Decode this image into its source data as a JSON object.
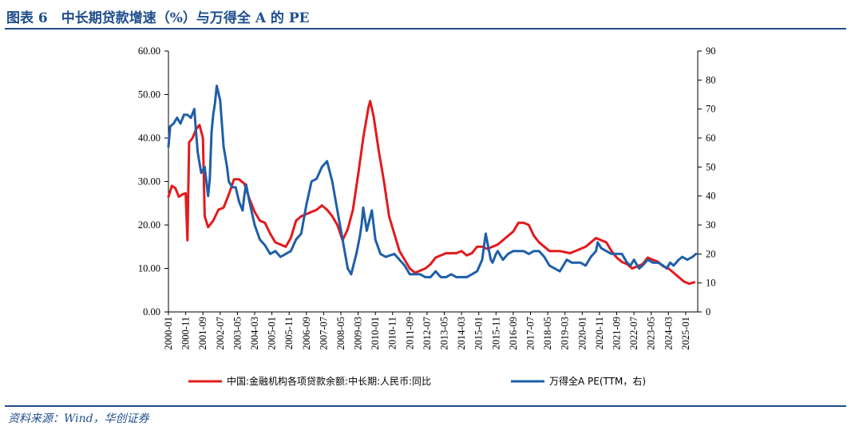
{
  "figure": {
    "title": "图表 6　中长期贷款增速（%）与万得全 A 的 PE",
    "source": "资料来源：Wind，华创证券"
  },
  "chart_data": {
    "type": "line",
    "dual_axis": true,
    "xlabel": "",
    "ylabel": "",
    "ylim_left": [
      0,
      60
    ],
    "yticks_left": [
      "0.00",
      "10.00",
      "20.00",
      "30.00",
      "40.00",
      "50.00",
      "60.00"
    ],
    "ylim_right": [
      0,
      90
    ],
    "yticks_right": [
      "0",
      "10",
      "20",
      "30",
      "40",
      "50",
      "60",
      "70",
      "80",
      "90"
    ],
    "xticks": [
      "2000-01",
      "2000-11",
      "2001-09",
      "2002-07",
      "2003-05",
      "2004-03",
      "2005-01",
      "2005-11",
      "2006-09",
      "2007-07",
      "2008-05",
      "2009-03",
      "2010-01",
      "2010-11",
      "2011-09",
      "2012-07",
      "2013-05",
      "2014-03",
      "2015-01",
      "2015-11",
      "2016-09",
      "2017-07",
      "2018-05",
      "2019-03",
      "2020-01",
      "2020-11",
      "2021-09",
      "2022-07",
      "2023-05",
      "2024-03",
      "2025-01"
    ],
    "x_range": [
      "2000-01",
      "2025-08"
    ],
    "grid": false,
    "legend_position": "bottom",
    "colors": {
      "red": "#e31a1c",
      "blue": "#1f5fa8"
    },
    "series": [
      {
        "name": "中国:金融机构各项贷款余额:中长期:人民币:同比",
        "axis": "left",
        "color": "#e31a1c",
        "points": [
          [
            "2000-01",
            26.5
          ],
          [
            "2000-03",
            29
          ],
          [
            "2000-05",
            28.5
          ],
          [
            "2000-07",
            26.5
          ],
          [
            "2000-09",
            27
          ],
          [
            "2000-11",
            27.3
          ],
          [
            "2000-12",
            16.5
          ],
          [
            "2001-01",
            39
          ],
          [
            "2001-03",
            40
          ],
          [
            "2001-05",
            42
          ],
          [
            "2001-07",
            43
          ],
          [
            "2001-09",
            40
          ],
          [
            "2001-10",
            22
          ],
          [
            "2001-12",
            19.5
          ],
          [
            "2002-03",
            21
          ],
          [
            "2002-06",
            23.5
          ],
          [
            "2002-09",
            24
          ],
          [
            "2002-12",
            27
          ],
          [
            "2003-03",
            30.5
          ],
          [
            "2003-06",
            30.5
          ],
          [
            "2003-09",
            29.5
          ],
          [
            "2003-12",
            26
          ],
          [
            "2004-03",
            23
          ],
          [
            "2004-06",
            21
          ],
          [
            "2004-09",
            20.5
          ],
          [
            "2004-12",
            18
          ],
          [
            "2005-03",
            16
          ],
          [
            "2005-06",
            15.5
          ],
          [
            "2005-09",
            15
          ],
          [
            "2005-12",
            17
          ],
          [
            "2006-03",
            21
          ],
          [
            "2006-06",
            22
          ],
          [
            "2006-09",
            22.5
          ],
          [
            "2006-12",
            23
          ],
          [
            "2007-03",
            23.5
          ],
          [
            "2007-06",
            24.5
          ],
          [
            "2007-09",
            23.5
          ],
          [
            "2007-12",
            22
          ],
          [
            "2008-03",
            20
          ],
          [
            "2008-06",
            16.5
          ],
          [
            "2008-09",
            19
          ],
          [
            "2008-12",
            23.5
          ],
          [
            "2009-03",
            31.5
          ],
          [
            "2009-06",
            40
          ],
          [
            "2009-09",
            47
          ],
          [
            "2009-10",
            48.5
          ],
          [
            "2009-12",
            45
          ],
          [
            "2010-03",
            37
          ],
          [
            "2010-06",
            30
          ],
          [
            "2010-09",
            22
          ],
          [
            "2010-12",
            18
          ],
          [
            "2011-03",
            14
          ],
          [
            "2011-06",
            12
          ],
          [
            "2011-09",
            10
          ],
          [
            "2011-12",
            9
          ],
          [
            "2012-03",
            9.5
          ],
          [
            "2012-06",
            10
          ],
          [
            "2012-09",
            11
          ],
          [
            "2012-12",
            12.5
          ],
          [
            "2013-06",
            13.5
          ],
          [
            "2013-12",
            13.5
          ],
          [
            "2014-03",
            14
          ],
          [
            "2014-06",
            13
          ],
          [
            "2014-09",
            13.5
          ],
          [
            "2014-12",
            15
          ],
          [
            "2015-03",
            15
          ],
          [
            "2015-06",
            14.5
          ],
          [
            "2015-09",
            15
          ],
          [
            "2015-12",
            15.5
          ],
          [
            "2016-03",
            16.5
          ],
          [
            "2016-06",
            17.5
          ],
          [
            "2016-09",
            18.5
          ],
          [
            "2016-12",
            20.5
          ],
          [
            "2017-03",
            20.5
          ],
          [
            "2017-06",
            20
          ],
          [
            "2017-09",
            17.5
          ],
          [
            "2017-12",
            16
          ],
          [
            "2018-06",
            14
          ],
          [
            "2018-12",
            14
          ],
          [
            "2019-06",
            13.5
          ],
          [
            "2019-12",
            14.5
          ],
          [
            "2020-03",
            15
          ],
          [
            "2020-06",
            16
          ],
          [
            "2020-09",
            17
          ],
          [
            "2020-12",
            16.5
          ],
          [
            "2021-03",
            16
          ],
          [
            "2021-06",
            14
          ],
          [
            "2021-09",
            12.5
          ],
          [
            "2021-12",
            11.5
          ],
          [
            "2022-03",
            11
          ],
          [
            "2022-06",
            10
          ],
          [
            "2022-09",
            10.5
          ],
          [
            "2022-12",
            11
          ],
          [
            "2023-03",
            12.5
          ],
          [
            "2023-06",
            12
          ],
          [
            "2023-09",
            11.5
          ],
          [
            "2023-12",
            10.5
          ],
          [
            "2024-03",
            10
          ],
          [
            "2024-06",
            9
          ],
          [
            "2024-09",
            8
          ],
          [
            "2024-12",
            7
          ],
          [
            "2025-03",
            6.5
          ],
          [
            "2025-06",
            6.8
          ]
        ]
      },
      {
        "name": "万得全A PE(TTM，右)",
        "axis": "right",
        "color": "#1f5fa8",
        "points": [
          [
            "2000-01",
            57
          ],
          [
            "2000-02",
            64
          ],
          [
            "2000-04",
            65
          ],
          [
            "2000-06",
            67
          ],
          [
            "2000-08",
            65
          ],
          [
            "2000-10",
            68
          ],
          [
            "2000-12",
            68
          ],
          [
            "2001-02",
            67
          ],
          [
            "2001-04",
            70
          ],
          [
            "2001-05",
            62
          ],
          [
            "2001-06",
            55
          ],
          [
            "2001-08",
            48
          ],
          [
            "2001-10",
            50
          ],
          [
            "2001-12",
            40
          ],
          [
            "2002-01",
            46
          ],
          [
            "2002-02",
            62
          ],
          [
            "2002-03",
            68
          ],
          [
            "2002-04",
            72
          ],
          [
            "2002-05",
            78
          ],
          [
            "2002-07",
            73
          ],
          [
            "2002-09",
            57
          ],
          [
            "2002-11",
            50
          ],
          [
            "2002-12",
            45
          ],
          [
            "2003-02",
            43
          ],
          [
            "2003-04",
            43
          ],
          [
            "2003-06",
            38
          ],
          [
            "2003-08",
            35
          ],
          [
            "2003-09",
            40
          ],
          [
            "2003-10",
            44
          ],
          [
            "2003-12",
            38
          ],
          [
            "2004-03",
            30
          ],
          [
            "2004-06",
            25
          ],
          [
            "2004-09",
            23
          ],
          [
            "2004-12",
            20
          ],
          [
            "2005-03",
            21
          ],
          [
            "2005-06",
            19
          ],
          [
            "2005-09",
            20
          ],
          [
            "2005-12",
            21
          ],
          [
            "2006-03",
            25
          ],
          [
            "2006-06",
            27
          ],
          [
            "2006-09",
            37
          ],
          [
            "2006-12",
            45
          ],
          [
            "2007-03",
            46
          ],
          [
            "2007-06",
            50
          ],
          [
            "2007-09",
            52
          ],
          [
            "2007-12",
            45
          ],
          [
            "2008-03",
            35
          ],
          [
            "2008-06",
            25
          ],
          [
            "2008-09",
            15
          ],
          [
            "2008-11",
            13
          ],
          [
            "2009-02",
            20
          ],
          [
            "2009-04",
            26
          ],
          [
            "2009-05",
            30
          ],
          [
            "2009-06",
            36
          ],
          [
            "2009-08",
            28
          ],
          [
            "2009-11",
            35
          ],
          [
            "2009-12",
            30
          ],
          [
            "2010-01",
            25
          ],
          [
            "2010-04",
            20
          ],
          [
            "2010-07",
            19
          ],
          [
            "2010-12",
            20
          ],
          [
            "2011-06",
            16
          ],
          [
            "2011-09",
            13
          ],
          [
            "2011-12",
            13
          ],
          [
            "2012-03",
            13
          ],
          [
            "2012-06",
            12
          ],
          [
            "2012-09",
            12
          ],
          [
            "2012-12",
            14
          ],
          [
            "2013-03",
            12
          ],
          [
            "2013-06",
            12
          ],
          [
            "2013-09",
            13
          ],
          [
            "2013-12",
            12
          ],
          [
            "2014-03",
            12
          ],
          [
            "2014-06",
            12
          ],
          [
            "2014-09",
            13
          ],
          [
            "2014-12",
            14
          ],
          [
            "2015-03",
            18
          ],
          [
            "2015-05",
            27
          ],
          [
            "2015-06",
            24
          ],
          [
            "2015-08",
            18
          ],
          [
            "2015-09",
            17
          ],
          [
            "2015-11",
            20
          ],
          [
            "2015-12",
            21
          ],
          [
            "2016-03",
            18
          ],
          [
            "2016-06",
            20
          ],
          [
            "2016-09",
            21
          ],
          [
            "2016-12",
            21
          ],
          [
            "2017-03",
            21
          ],
          [
            "2017-06",
            20
          ],
          [
            "2017-09",
            21
          ],
          [
            "2017-12",
            21
          ],
          [
            "2018-03",
            19
          ],
          [
            "2018-06",
            16
          ],
          [
            "2018-09",
            15
          ],
          [
            "2018-12",
            14
          ],
          [
            "2019-02",
            16
          ],
          [
            "2019-04",
            18
          ],
          [
            "2019-07",
            17
          ],
          [
            "2019-10",
            17
          ],
          [
            "2019-12",
            17
          ],
          [
            "2020-03",
            16
          ],
          [
            "2020-06",
            19
          ],
          [
            "2020-09",
            21
          ],
          [
            "2020-10",
            24
          ],
          [
            "2020-12",
            22
          ],
          [
            "2021-03",
            21
          ],
          [
            "2021-06",
            20
          ],
          [
            "2021-09",
            20
          ],
          [
            "2021-12",
            20
          ],
          [
            "2022-03",
            17
          ],
          [
            "2022-05",
            16
          ],
          [
            "2022-07",
            18
          ],
          [
            "2022-10",
            15
          ],
          [
            "2022-12",
            16
          ],
          [
            "2023-03",
            18
          ],
          [
            "2023-06",
            17
          ],
          [
            "2023-09",
            17
          ],
          [
            "2023-12",
            16
          ],
          [
            "2024-02",
            15
          ],
          [
            "2024-04",
            17
          ],
          [
            "2024-06",
            16
          ],
          [
            "2024-09",
            18
          ],
          [
            "2024-11",
            19
          ],
          [
            "2025-02",
            18
          ],
          [
            "2025-05",
            19
          ],
          [
            "2025-07",
            20
          ]
        ]
      }
    ]
  }
}
